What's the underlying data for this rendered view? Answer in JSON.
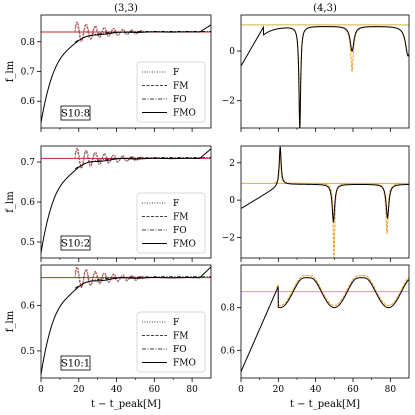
{
  "figure": {
    "xlabel": "t − t_peak[M]",
    "ylabel": "f_lm",
    "col_titles": [
      "(3,3)",
      "(4,3)"
    ]
  },
  "legend": [
    "F",
    "FM",
    "FO",
    "FMO"
  ],
  "colors": {
    "model": "#000000",
    "red": "#c8252b",
    "orange": "#f0a22e",
    "golden": "#d9b03a"
  },
  "chart_data": [
    {
      "id": "left-top",
      "type": "line",
      "mode": "33",
      "label": "S10:8",
      "xlim": [
        0,
        90
      ],
      "ylim": [
        0.51,
        0.89
      ],
      "yticks": [
        0.6,
        0.7,
        0.8
      ],
      "y0": 0.53,
      "yf": 0.833,
      "ylevel": 0.833,
      "xticks": [
        0,
        20,
        40,
        60,
        80
      ],
      "show_xlabels": false,
      "show_ylabel": true
    },
    {
      "id": "left-mid",
      "type": "line",
      "mode": "33",
      "label": "S10:2",
      "xlim": [
        0,
        90
      ],
      "ylim": [
        0.46,
        0.74
      ],
      "yticks": [
        0.5,
        0.6,
        0.7
      ],
      "y0": 0.475,
      "yf": 0.709,
      "ylevel": 0.709,
      "xticks": [
        0,
        20,
        40,
        60,
        80
      ],
      "show_xlabels": false,
      "show_ylabel": true
    },
    {
      "id": "left-bot",
      "type": "line",
      "mode": "33",
      "label": "S10:1",
      "xlim": [
        0,
        90
      ],
      "ylim": [
        0.44,
        0.69
      ],
      "yticks": [
        0.5,
        0.6
      ],
      "y0": 0.45,
      "yf": 0.662,
      "ylevel": 0.662,
      "xticks": [
        0,
        20,
        40,
        60,
        80
      ],
      "show_xlabels": true,
      "show_ylabel": true
    },
    {
      "id": "right-top",
      "type": "line",
      "mode": "43a",
      "label": "",
      "xlim": [
        0,
        90
      ],
      "ylim": [
        -3.1,
        1.45
      ],
      "yticks": [
        -2,
        0
      ],
      "ylevel": 1.05,
      "xticks": [
        0,
        20,
        40,
        60,
        80
      ],
      "show_xlabels": false,
      "show_ylabel": false
    },
    {
      "id": "right-mid",
      "type": "line",
      "mode": "43b",
      "label": "",
      "xlim": [
        0,
        90
      ],
      "ylim": [
        -3.1,
        2.9
      ],
      "yticks": [
        -2,
        0,
        2
      ],
      "ylevel": 0.9,
      "xticks": [
        0,
        20,
        40,
        60,
        80
      ],
      "show_xlabels": false,
      "show_ylabel": false
    },
    {
      "id": "right-bot",
      "type": "line",
      "mode": "43c",
      "label": "",
      "xlim": [
        0,
        90
      ],
      "ylim": [
        0.47,
        1.0
      ],
      "yticks": [
        0.6,
        0.8
      ],
      "ylevel": 0.875,
      "xticks": [
        0,
        20,
        40,
        60,
        80
      ],
      "show_xlabels": true,
      "show_ylabel": false
    }
  ]
}
